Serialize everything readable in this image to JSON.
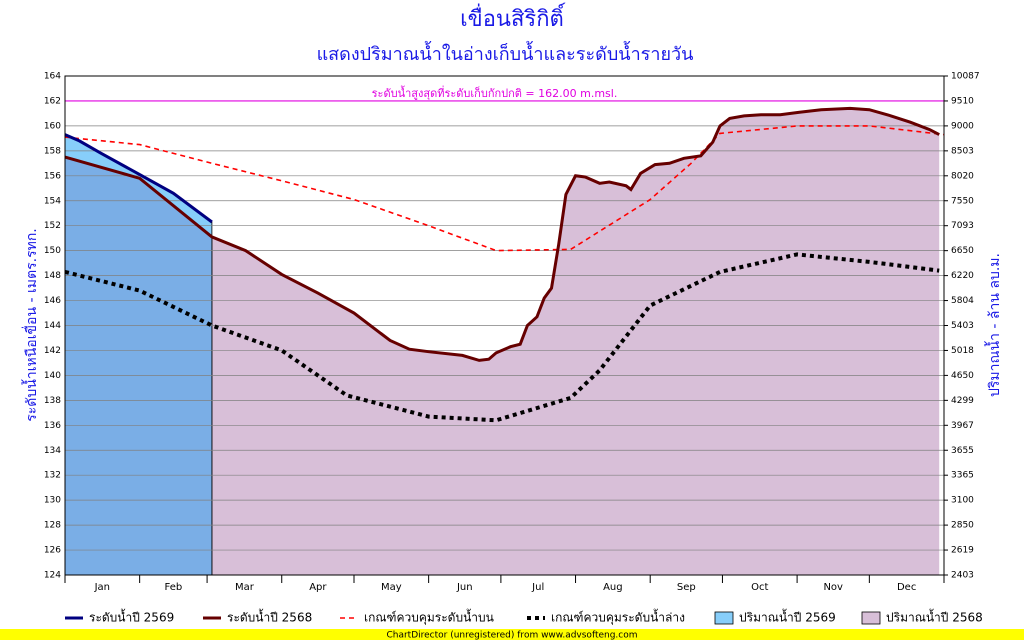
{
  "chart_data": {
    "type": "line",
    "title": "เขื่อนสิริกิติ์",
    "subtitle": "แสดงปริมาณน้ำในอ่างเก็บน้ำและระดับน้ำรายวัน",
    "y_label": "ระดับน้ำเหนือเขื่อน - เมตร.รทก.",
    "y2_label": "ปริมาณน้ำ - ล้าน ลบ.ม.",
    "footer": "ChartDirector (unregistered) from www.advsofteng.com",
    "annotation": "ระดับน้ำสูงสุดที่ระดับเก็บกักปกติ = 162.00 m.msl.",
    "max_level": 162,
    "max_level_color": "#e000e0",
    "grid": true,
    "xlim": [
      0,
      365
    ],
    "xticks": [
      0,
      31,
      59,
      90,
      120,
      151,
      181,
      212,
      243,
      273,
      304,
      334,
      365
    ],
    "x_categories": [
      "Jan",
      "Feb",
      "Mar",
      "Apr",
      "May",
      "Jun",
      "Jul",
      "Aug",
      "Sep",
      "Oct",
      "Nov",
      "Dec"
    ],
    "ylim": [
      124,
      164
    ],
    "yticks": [
      124,
      126,
      128,
      130,
      132,
      134,
      136,
      138,
      140,
      142,
      144,
      146,
      148,
      150,
      152,
      154,
      156,
      158,
      160,
      162,
      164
    ],
    "y2ticks": [
      2403,
      2619,
      2850,
      3100,
      3365,
      3655,
      3967,
      4299,
      4650,
      5018,
      5403,
      5804,
      6220,
      6650,
      7093,
      7550,
      8020,
      8503,
      9000,
      9510,
      10087
    ],
    "overlap_color": "#7aaee6",
    "series": [
      {
        "name": "ระดับน้ำปี 2569",
        "color": "#000080",
        "style": "solid",
        "x": [
          0,
          6,
          15,
          31,
          45,
          61
        ],
        "values": [
          159.3,
          158.8,
          157.8,
          156.1,
          154.6,
          152.3
        ]
      },
      {
        "name": "ระดับน้ำปี 2568",
        "color": "#660000",
        "style": "solid",
        "x": [
          0,
          31,
          61,
          75,
          90,
          105,
          120,
          135,
          143,
          151,
          165,
          172,
          176,
          179,
          185,
          189,
          192,
          196,
          199,
          202,
          205,
          208,
          212,
          216,
          222,
          226,
          233,
          235,
          239,
          245,
          251,
          257,
          264,
          269,
          272,
          276,
          282,
          289,
          297,
          305,
          314,
          326,
          334,
          343,
          351,
          359,
          363
        ],
        "values": [
          157.5,
          155.8,
          151.1,
          150.0,
          148.1,
          146.6,
          145.0,
          142.8,
          142.1,
          141.9,
          141.6,
          141.2,
          141.3,
          141.8,
          142.3,
          142.5,
          144.0,
          144.7,
          146.2,
          147.0,
          150.5,
          154.5,
          156.0,
          155.9,
          155.4,
          155.5,
          155.2,
          154.9,
          156.2,
          156.9,
          157.0,
          157.4,
          157.6,
          158.7,
          160.0,
          160.6,
          160.8,
          160.9,
          160.9,
          161.1,
          161.3,
          161.4,
          161.3,
          160.8,
          160.3,
          159.7,
          159.3
        ]
      },
      {
        "name": "เกณฑ์ควบคุมระดับน้ำบน",
        "color": "#ff0000",
        "style": "dashed",
        "x": [
          0,
          31,
          61,
          90,
          120,
          151,
          179,
          210,
          243,
          260,
          272,
          304,
          334,
          365
        ],
        "values": [
          159.1,
          158.5,
          157.0,
          155.6,
          154.1,
          152.0,
          150.0,
          150.1,
          154.1,
          157.0,
          159.4,
          160.0,
          160.0,
          159.3
        ]
      },
      {
        "name": "เกณฑ์ควบคุมระดับน้ำล่าง",
        "color": "#000000",
        "style": "dotted",
        "x": [
          0,
          31,
          61,
          90,
          117,
          151,
          179,
          210,
          222,
          243,
          272,
          304,
          334,
          363
        ],
        "values": [
          148.3,
          146.8,
          144.0,
          142.0,
          138.4,
          136.7,
          136.4,
          138.2,
          140.4,
          145.6,
          148.3,
          149.7,
          149.1,
          148.4
        ]
      }
    ],
    "areas": [
      {
        "name": "ปริมาณน้ำปี 2569",
        "color": "#87cefa"
      },
      {
        "name": "ปริมาณน้ำปี 2568",
        "color": "#d8bfd8"
      }
    ]
  }
}
